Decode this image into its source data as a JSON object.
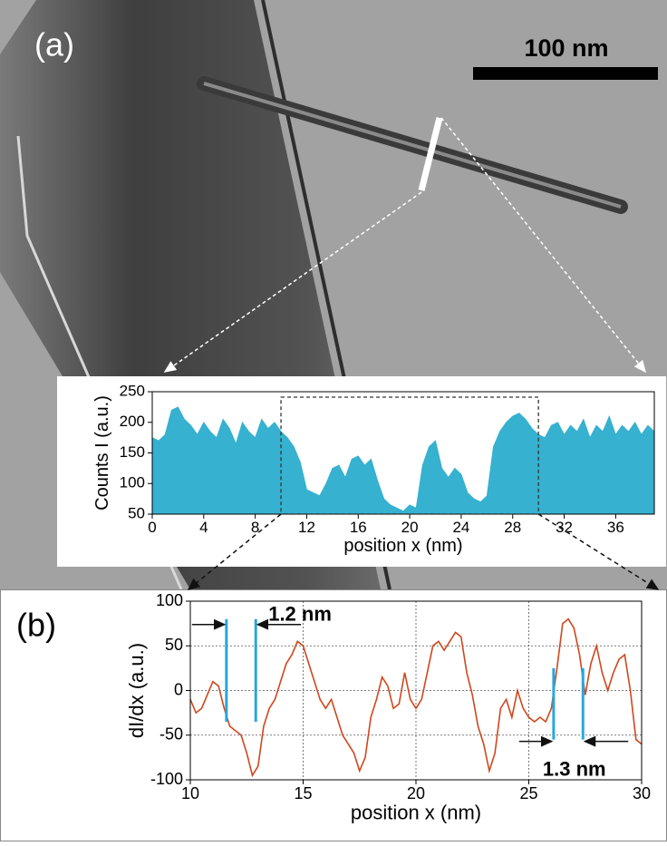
{
  "image": {
    "panel_label": "(a)",
    "scale_bar": "100 nm"
  },
  "chart_data": [
    {
      "type": "area",
      "panel_label": "",
      "color": "#36b1cf",
      "y_label": "Counts I (a.u.)",
      "x_label": "position x (nm)",
      "x": [
        0,
        0.5,
        1,
        1.5,
        2,
        2.5,
        3,
        3.5,
        4,
        4.5,
        5,
        5.5,
        6,
        6.5,
        7,
        7.5,
        8,
        8.5,
        9,
        9.5,
        10,
        10.5,
        11,
        11.5,
        12,
        12.5,
        13,
        13.5,
        14,
        14.5,
        15,
        15.5,
        16,
        16.5,
        17,
        17.5,
        18,
        18.5,
        19,
        19.5,
        20,
        20.5,
        21,
        21.5,
        22,
        22.5,
        23,
        23.5,
        24,
        24.5,
        25,
        25.5,
        26,
        26.5,
        27,
        27.5,
        28,
        28.5,
        29,
        29.5,
        30,
        30.5,
        31,
        31.5,
        32,
        32.5,
        33,
        33.5,
        34,
        34.5,
        35,
        35.5,
        36,
        36.5,
        37,
        37.5,
        38,
        38.5,
        39
      ],
      "values": [
        175,
        170,
        180,
        220,
        225,
        205,
        195,
        180,
        200,
        185,
        175,
        205,
        190,
        165,
        200,
        185,
        175,
        205,
        190,
        200,
        185,
        175,
        160,
        135,
        90,
        85,
        80,
        100,
        125,
        130,
        110,
        140,
        145,
        130,
        140,
        105,
        75,
        65,
        60,
        55,
        65,
        60,
        130,
        160,
        170,
        125,
        110,
        125,
        115,
        85,
        75,
        70,
        80,
        160,
        185,
        200,
        210,
        215,
        205,
        190,
        180,
        175,
        195,
        200,
        180,
        195,
        185,
        205,
        175,
        195,
        185,
        210,
        180,
        195,
        185,
        200,
        180,
        195,
        185
      ],
      "xlim": [
        0,
        39
      ],
      "xticks": [
        0,
        4,
        8,
        12,
        16,
        20,
        24,
        28,
        32,
        36
      ],
      "ylim": [
        50,
        250
      ],
      "yticks": [
        50,
        100,
        150,
        200,
        250
      ]
    },
    {
      "type": "line",
      "panel_label": "(b)",
      "color": "#d0471d",
      "y_label": "dI/dx (a.u.)",
      "x_label": "position x (nm)",
      "x": [
        10,
        10.25,
        10.5,
        10.75,
        11,
        11.25,
        11.5,
        11.75,
        12,
        12.25,
        12.5,
        12.75,
        13,
        13.25,
        13.5,
        13.75,
        14,
        14.25,
        14.5,
        14.75,
        15,
        15.25,
        15.5,
        15.75,
        16,
        16.25,
        16.5,
        16.75,
        17,
        17.25,
        17.5,
        17.75,
        18,
        18.25,
        18.5,
        18.75,
        19,
        19.25,
        19.5,
        19.75,
        20,
        20.25,
        20.5,
        20.75,
        21,
        21.25,
        21.5,
        21.75,
        22,
        22.25,
        22.5,
        22.75,
        23,
        23.25,
        23.5,
        23.75,
        24,
        24.25,
        24.5,
        24.75,
        25,
        25.25,
        25.5,
        25.75,
        26,
        26.25,
        26.5,
        26.75,
        27,
        27.25,
        27.5,
        27.75,
        28,
        28.25,
        28.5,
        28.75,
        29,
        29.25,
        29.5,
        29.75,
        30
      ],
      "values": [
        -10,
        -25,
        -20,
        -5,
        10,
        5,
        -20,
        -40,
        -45,
        -50,
        -70,
        -95,
        -85,
        -40,
        -20,
        -10,
        10,
        30,
        40,
        55,
        50,
        30,
        10,
        -10,
        -20,
        -10,
        -30,
        -50,
        -60,
        -70,
        -90,
        -75,
        -30,
        -10,
        15,
        5,
        -20,
        -15,
        20,
        -10,
        -20,
        -10,
        20,
        50,
        55,
        45,
        55,
        65,
        60,
        20,
        -5,
        -40,
        -60,
        -90,
        -70,
        -20,
        -10,
        -30,
        0,
        -20,
        -30,
        -35,
        -30,
        -35,
        -20,
        25,
        75,
        80,
        70,
        40,
        -5,
        30,
        50,
        20,
        0,
        20,
        35,
        40,
        0,
        -55,
        -60
      ],
      "xlim": [
        10,
        30
      ],
      "xticks": [
        10,
        15,
        20,
        25,
        30
      ],
      "ylim": [
        -100,
        100
      ],
      "yticks": [
        -100,
        -50,
        0,
        50,
        100
      ],
      "grid": true,
      "marker_color": "#2aa6dc",
      "annotations": [
        {
          "text": "1.2 nm",
          "x": [
            11.6,
            12.9
          ],
          "y": [
            -35,
            80
          ]
        },
        {
          "text": "1.3 nm",
          "x": [
            26.1,
            27.4
          ],
          "y": [
            -55,
            25
          ]
        }
      ]
    }
  ]
}
